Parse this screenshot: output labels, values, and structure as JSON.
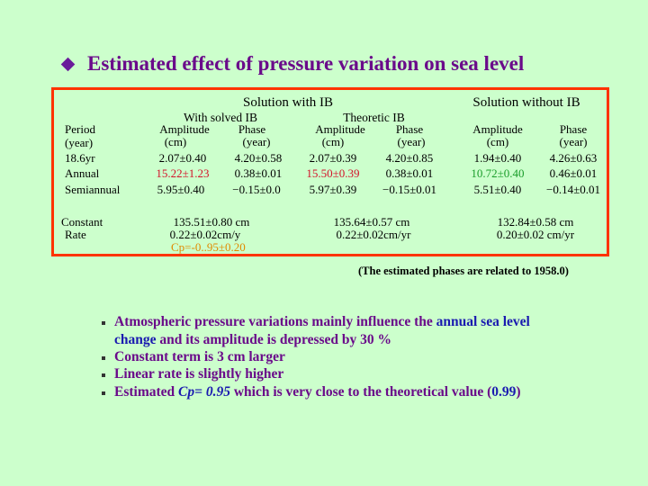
{
  "title": "Estimated effect of pressure variation on sea level",
  "groups": {
    "with_ib": "Solution with IB",
    "without_ib": "Solution without IB",
    "solved_ib": "With solved IB",
    "theoretic_ib": "Theoretic IB"
  },
  "headers": {
    "period": "Period",
    "period_unit": "(year)",
    "amplitude": "Amplitude",
    "amplitude_unit": "(cm)",
    "phase": "Phase",
    "phase_unit": "(year)"
  },
  "rows": [
    {
      "period": "18.6yr",
      "solved_amp": "2.07±0.40",
      "solved_phase": "4.20±0.58",
      "theo_amp": "2.07±0.39",
      "theo_phase": "4.20±0.85",
      "no_amp": "1.94±0.40",
      "no_phase": "4.26±0.63"
    },
    {
      "period": "Annual",
      "solved_amp": "15.22±1.23",
      "solved_phase": "0.38±0.01",
      "theo_amp": "15.50±0.39",
      "theo_phase": "0.38±0.01",
      "no_amp": "10.72±0.40",
      "no_phase": "0.46±0.01"
    },
    {
      "period": "Semiannual",
      "solved_amp": "5.95±0.40",
      "solved_phase": "−0.15±0.0",
      "theo_amp": "5.97±0.39",
      "theo_phase": "−0.15±0.01",
      "no_amp": "5.51±0.40",
      "no_phase": "−0.14±0.01"
    }
  ],
  "constant": {
    "label1": "Constant",
    "label2": "Rate",
    "solved_const": "135.51±0.80 cm",
    "solved_rate": "0.22±0.02cm/y",
    "solved_cp": "Cp=-0..95±0.20",
    "theo_const": "135.64±0.57 cm",
    "theo_rate": "0.22±0.02cm/yr",
    "no_const": "132.84±0.58 cm",
    "no_rate": "0.20±0.02 cm/yr"
  },
  "note": "(The estimated phases are related to 1958.0)",
  "bullets": {
    "b1_pre": "Atmospheric pressure variations mainly influence the ",
    "b1_hl": "annual sea level",
    "b1_line2_hl": "change",
    "b1_line2_rest": " and its amplitude is depressed by 30 %",
    "b2": "Constant term is 3 cm larger",
    "b3": "Linear rate is slightly higher",
    "b4_pre": "Estimated ",
    "b4_cp": "Cp= 0.95",
    "b4_mid": " which is very close to the theoretical value (",
    "b4_val": "0.99",
    "b4_end": ")"
  },
  "colors": {
    "background": "#ccffcc",
    "border": "#ff3300",
    "title": "#6a0a8a",
    "highlight_red": "#d4122a",
    "highlight_green": "#1a9c2a",
    "highlight_orange": "#e08a00",
    "highlight_blue": "#1a1ab0"
  }
}
